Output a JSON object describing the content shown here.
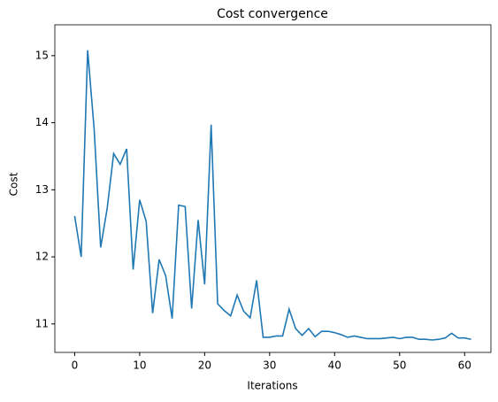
{
  "chart_data": {
    "type": "line",
    "title": "Cost convergence",
    "x_label": "Iterations",
    "y_label": "Cost",
    "x": [
      0,
      1,
      2,
      3,
      4,
      5,
      6,
      7,
      8,
      9,
      10,
      11,
      12,
      13,
      14,
      15,
      16,
      17,
      18,
      19,
      20,
      21,
      22,
      23,
      24,
      25,
      26,
      27,
      28,
      29,
      30,
      31,
      32,
      33,
      34,
      35,
      36,
      37,
      38,
      39,
      40,
      41,
      42,
      43,
      44,
      45,
      46,
      47,
      48,
      49,
      50,
      51,
      52,
      53,
      54,
      55,
      56,
      57,
      58,
      59,
      60,
      61
    ],
    "series": [
      {
        "color": "#1f77b4",
        "values": [
          12.61,
          12.0,
          15.08,
          13.9,
          12.14,
          12.72,
          13.54,
          13.38,
          13.61,
          11.81,
          12.85,
          12.53,
          11.16,
          11.96,
          11.72,
          11.08,
          12.77,
          12.75,
          11.23,
          12.55,
          11.59,
          13.97,
          11.3,
          11.2,
          11.12,
          11.43,
          11.19,
          11.09,
          11.65,
          10.8,
          10.8,
          10.82,
          10.82,
          11.22,
          10.93,
          10.83,
          10.93,
          10.81,
          10.89,
          10.89,
          10.87,
          10.84,
          10.8,
          10.82,
          10.8,
          10.78,
          10.78,
          10.78,
          10.79,
          10.8,
          10.78,
          10.8,
          10.8,
          10.77,
          10.77,
          10.76,
          10.77,
          10.79,
          10.86,
          10.79,
          10.79,
          10.77
        ]
      }
    ],
    "xlim": [
      -3.05,
      64.05
    ],
    "ylim": [
      10.575,
      15.46
    ],
    "xticks": [
      0,
      10,
      20,
      30,
      40,
      50,
      60
    ],
    "yticks": [
      11,
      12,
      13,
      14,
      15
    ]
  }
}
